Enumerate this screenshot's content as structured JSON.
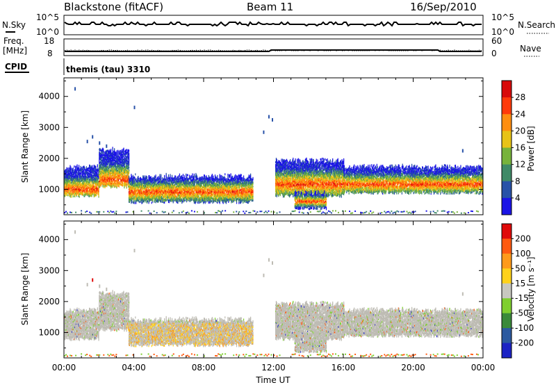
{
  "header": {
    "station": "Blackstone (fitACF)",
    "beam": "Beam 11",
    "date": "16/Sep/2010"
  },
  "status_panels": {
    "nsky_label": "N.Sky",
    "nsky_ticks": [
      "10^5",
      "10^0"
    ],
    "nsearch_label": "N.Search",
    "nsearch_ticks": [
      "10^5",
      "10^0"
    ],
    "freq_label_1": "Freq.",
    "freq_label_2": "[MHz]",
    "freq_ticks": [
      "18",
      "8"
    ],
    "nave_label": "Nave",
    "nave_ticks": [
      "60",
      "0"
    ],
    "cpid_label": "CPID",
    "cpid_value": "themis (tau) 3310"
  },
  "chart_data": [
    {
      "type": "heatmap",
      "panel": "power",
      "ylabel": "Slant Range [km]",
      "yticks": [
        1000,
        2000,
        3000,
        4000
      ],
      "ylim": [
        180,
        4600
      ],
      "colorbar": {
        "label": "Power [dB]",
        "ticks": [
          4,
          8,
          12,
          16,
          20,
          24,
          28
        ],
        "colors": [
          "#1b14e6",
          "#2852a8",
          "#3f8a67",
          "#77b33b",
          "#e8c317",
          "#ff8e10",
          "#ff3a0a",
          "#d80a0a"
        ]
      },
      "bands": [
        {
          "t": [
            0.0,
            2.0
          ],
          "r": [
            850,
            1750
          ],
          "core": [
            930,
            1150
          ]
        },
        {
          "t": [
            2.0,
            3.7
          ],
          "r": [
            1150,
            2300
          ],
          "core": [
            1250,
            1450
          ]
        },
        {
          "t": [
            3.7,
            10.8
          ],
          "r": [
            650,
            1450
          ],
          "core": [
            760,
            1150
          ]
        },
        {
          "t": [
            12.1,
            16.0
          ],
          "r": [
            850,
            1950
          ],
          "core": [
            1050,
            1350
          ]
        },
        {
          "t": [
            13.2,
            15.0
          ],
          "r": [
            450,
            900
          ],
          "core": [
            550,
            750
          ]
        },
        {
          "t": [
            16.0,
            24.0
          ],
          "r": [
            950,
            1750
          ],
          "core": [
            1050,
            1350
          ]
        }
      ]
    },
    {
      "type": "heatmap",
      "panel": "velocity",
      "ylabel": "Slant Range [km]",
      "yticks": [
        1000,
        2000,
        3000,
        4000
      ],
      "ylim": [
        180,
        4600
      ],
      "xlabel": "Time UT",
      "xticks": [
        "00:00",
        "04:00",
        "08:00",
        "12:00",
        "16:00",
        "20:00",
        "00:00"
      ],
      "xlim": [
        0,
        24
      ],
      "colorbar": {
        "label": "Velocity [m s⁻¹]",
        "ticks": [
          200,
          100,
          50,
          15,
          -15,
          -50,
          -100,
          -200
        ],
        "colors": [
          "#1c23c4",
          "#2c5aa0",
          "#3a8a3a",
          "#7fcf2f",
          "#c8c8c0",
          "#ffd21a",
          "#ff9a1a",
          "#ff5a10",
          "#e00a0a"
        ]
      }
    }
  ],
  "colors": {
    "axis": "#000000",
    "ground_scatter": "#bebcb4"
  }
}
